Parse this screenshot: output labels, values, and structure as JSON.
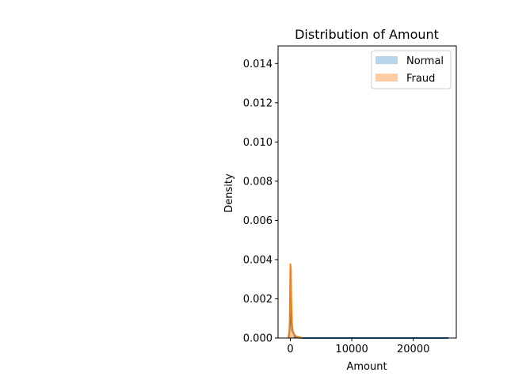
{
  "chart_data": {
    "type": "area",
    "title": "Distribution of Amount",
    "xlabel": "Amount",
    "ylabel": "Density",
    "xlim": [
      -2000,
      27000
    ],
    "ylim": [
      0,
      0.0149
    ],
    "x_ticks": [
      0,
      10000,
      20000
    ],
    "x_tick_labels": [
      "0",
      "10000",
      "20000"
    ],
    "y_ticks": [
      0.0,
      0.002,
      0.004,
      0.006,
      0.008,
      0.01,
      0.012,
      0.014
    ],
    "y_tick_labels": [
      "0.000",
      "0.002",
      "0.004",
      "0.006",
      "0.008",
      "0.010",
      "0.012",
      "0.014"
    ],
    "legend_position": "top-right",
    "series": [
      {
        "name": "Normal",
        "hist_color": "#a6cbe3",
        "line_color": "#1f77b4",
        "hist": [
          {
            "x0": 0,
            "x1": 260,
            "density": 0.00195
          },
          {
            "x0": 260,
            "x1": 520,
            "density": 0.0001
          },
          {
            "x0": 520,
            "x1": 780,
            "density": 3e-05
          }
        ],
        "kde": [
          [
            -300,
            0.0
          ],
          [
            0,
            0.0008
          ],
          [
            150,
            0.0015
          ],
          [
            300,
            0.0004
          ],
          [
            800,
            3e-05
          ],
          [
            2000,
            0.0
          ],
          [
            25700,
            0.0
          ]
        ]
      },
      {
        "name": "Fraud",
        "hist_color": "#ffbf8c",
        "line_color": "#ff7f0e",
        "hist": [
          {
            "x0": -100,
            "x1": 130,
            "density": 0.0037
          },
          {
            "x0": 130,
            "x1": 360,
            "density": 0.00045
          },
          {
            "x0": 360,
            "x1": 590,
            "density": 0.00018
          },
          {
            "x0": 590,
            "x1": 820,
            "density": 0.0001
          },
          {
            "x0": 820,
            "x1": 1050,
            "density": 6e-05
          },
          {
            "x0": 1050,
            "x1": 1280,
            "density": 4e-05
          },
          {
            "x0": 1280,
            "x1": 1510,
            "density": 3e-05
          },
          {
            "x0": 1510,
            "x1": 1740,
            "density": 2e-05
          },
          {
            "x0": 1740,
            "x1": 1970,
            "density": 1e-05
          }
        ],
        "kde": [
          [
            -200,
            0.0
          ],
          [
            -100,
            0.001
          ],
          [
            0,
            0.0038
          ],
          [
            80,
            0.0035
          ],
          [
            150,
            0.002
          ],
          [
            250,
            0.0008
          ],
          [
            400,
            0.00035
          ],
          [
            700,
            0.00015
          ],
          [
            1000,
            8e-05
          ],
          [
            1500,
            4e-05
          ],
          [
            2000,
            0.0
          ]
        ]
      }
    ]
  }
}
